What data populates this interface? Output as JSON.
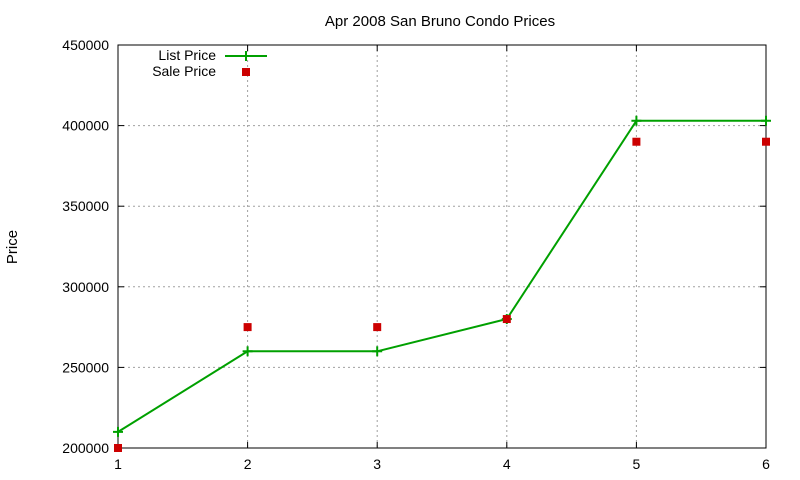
{
  "chart_data": {
    "type": "line",
    "title": "Apr 2008 San Bruno Condo Prices",
    "xlabel": "",
    "ylabel": "Price",
    "x": [
      1,
      2,
      3,
      4,
      5,
      6
    ],
    "xlim": [
      1,
      6
    ],
    "ylim": [
      200000,
      450000
    ],
    "xticks": [
      1,
      2,
      3,
      4,
      5,
      6
    ],
    "yticks": [
      200000,
      250000,
      300000,
      350000,
      400000,
      450000
    ],
    "grid": true,
    "legend_position": "top-left",
    "series": [
      {
        "name": "List Price",
        "style": "line-with-plus-markers",
        "color": "#00a000",
        "values": [
          210000,
          260000,
          260000,
          280000,
          403000,
          403000
        ]
      },
      {
        "name": "Sale Price",
        "style": "square-markers",
        "color": "#cc0000",
        "values": [
          200000,
          275000,
          275000,
          280000,
          390000,
          390000
        ]
      }
    ]
  }
}
